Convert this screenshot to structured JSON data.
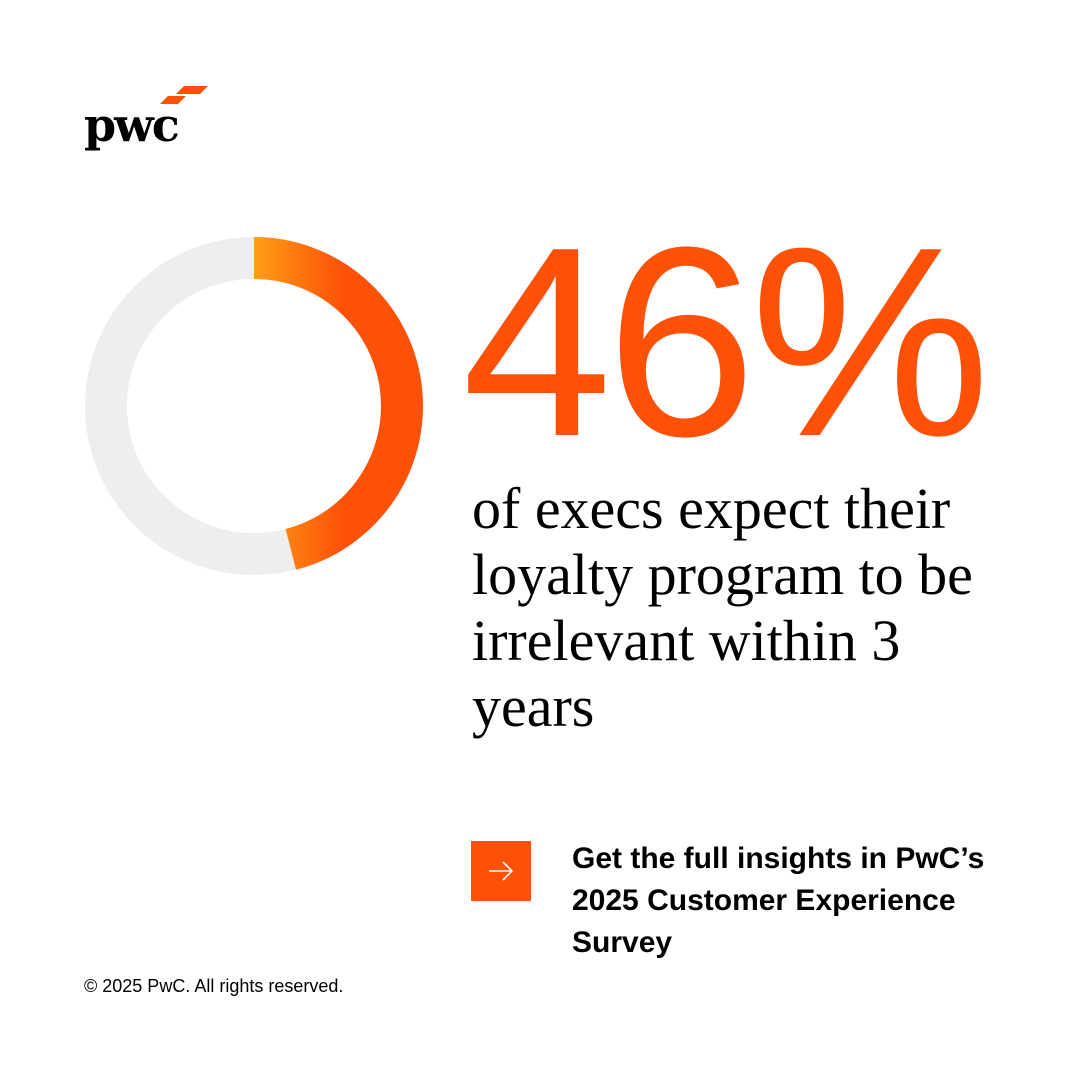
{
  "brand": {
    "logo_text": "pwc",
    "accent_color": "#fd5108",
    "accent_light": "#ff9e16",
    "track_color": "#eeeef0"
  },
  "chart_data": {
    "type": "pie",
    "values": [
      46,
      54
    ],
    "colors": [
      "#fd5108",
      "#eeeef0"
    ]
  },
  "stat": {
    "value": "46%",
    "description": "of execs expect their loyalty program to be irrelevant within 3 years"
  },
  "cta": {
    "icon": "arrow-right-icon",
    "text": "Get the full insights in PwC’s 2025 Customer Experience Survey"
  },
  "footer": {
    "copyright": "© 2025 PwC. All rights reserved."
  }
}
